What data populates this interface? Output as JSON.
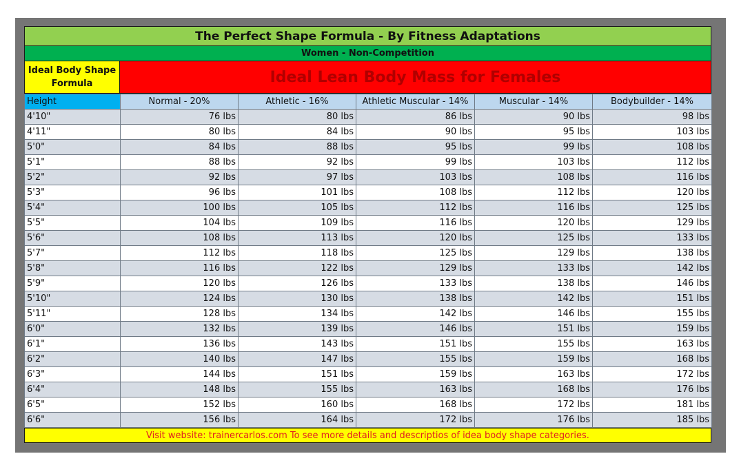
{
  "title": "The Perfect Shape Formula - By Fitness Adaptations",
  "subtitle": "Women - Non-Competition",
  "ideal_label_line1": "Ideal Body Shape",
  "ideal_label_line2": "Formula",
  "main_heading": "Ideal Lean Body Mass for Females",
  "columns": [
    "Height",
    "Normal - 20%",
    "Athletic - 16%",
    "Athletic Muscular - 14%",
    "Muscular  - 14%",
    "Bodybuilder - 14%"
  ],
  "rows": [
    [
      "4'10\"",
      "76 lbs",
      "80 lbs",
      "86 lbs",
      "90 lbs",
      "98 lbs"
    ],
    [
      "4'11\"",
      "80 lbs",
      "84 lbs",
      "90 lbs",
      "95 lbs",
      "103 lbs"
    ],
    [
      "5'0\"",
      "84 lbs",
      "88 lbs",
      "95 lbs",
      "99 lbs",
      "108 lbs"
    ],
    [
      "5'1\"",
      "88 lbs",
      "92 lbs",
      "99 lbs",
      "103 lbs",
      "112 lbs"
    ],
    [
      "5'2\"",
      "92 lbs",
      "97 lbs",
      "103 lbs",
      "108 lbs",
      "116 lbs"
    ],
    [
      "5'3\"",
      "96 lbs",
      "101 lbs",
      "108 lbs",
      "112 lbs",
      "120 lbs"
    ],
    [
      "5'4\"",
      "100 lbs",
      "105 lbs",
      "112 lbs",
      "116 lbs",
      "125 lbs"
    ],
    [
      "5'5\"",
      "104 lbs",
      "109 lbs",
      "116 lbs",
      "120 lbs",
      "129 lbs"
    ],
    [
      "5'6\"",
      "108 lbs",
      "113 lbs",
      "120 lbs",
      "125 lbs",
      "133 lbs"
    ],
    [
      "5'7\"",
      "112 lbs",
      "118 lbs",
      "125 lbs",
      "129 lbs",
      "138 lbs"
    ],
    [
      "5'8\"",
      "116 lbs",
      "122 lbs",
      "129 lbs",
      "133 lbs",
      "142 lbs"
    ],
    [
      "5'9\"",
      "120 lbs",
      "126 lbs",
      "133 lbs",
      "138 lbs",
      "146 lbs"
    ],
    [
      "5'10\"",
      "124 lbs",
      "130 lbs",
      "138 lbs",
      "142 lbs",
      "151 lbs"
    ],
    [
      "5'11\"",
      "128 lbs",
      "134 lbs",
      "142 lbs",
      "146 lbs",
      "155 lbs"
    ],
    [
      "6'0\"",
      "132 lbs",
      "139 lbs",
      "146 lbs",
      "151 lbs",
      "159 lbs"
    ],
    [
      "6'1\"",
      "136 lbs",
      "143 lbs",
      "151 lbs",
      "155 lbs",
      "163 lbs"
    ],
    [
      "6'2\"",
      "140 lbs",
      "147 lbs",
      "155 lbs",
      "159 lbs",
      "168 lbs"
    ],
    [
      "6'3\"",
      "144 lbs",
      "151 lbs",
      "159 lbs",
      "163 lbs",
      "172 lbs"
    ],
    [
      "6'4\"",
      "148 lbs",
      "155 lbs",
      "163 lbs",
      "168 lbs",
      "176 lbs"
    ],
    [
      "6'5\"",
      "152 lbs",
      "160 lbs",
      "168 lbs",
      "172 lbs",
      "181 lbs"
    ],
    [
      "6'6\"",
      "156 lbs",
      "164 lbs",
      "172 lbs",
      "176 lbs",
      "185 lbs"
    ]
  ],
  "footer": "Visit website: trainercarlos.com To see more details and descriptios of idea body shape categories.",
  "colors": {
    "title_bg": "#92d050",
    "subtitle_bg": "#00b050",
    "ideal_bg": "#ffff00",
    "heading_bg": "#ff0000",
    "header_bg": "#bdd7ee",
    "height_header_bg": "#00b0f0",
    "stripe_bg": "#d6dce4",
    "footer_text": "#e02020"
  }
}
